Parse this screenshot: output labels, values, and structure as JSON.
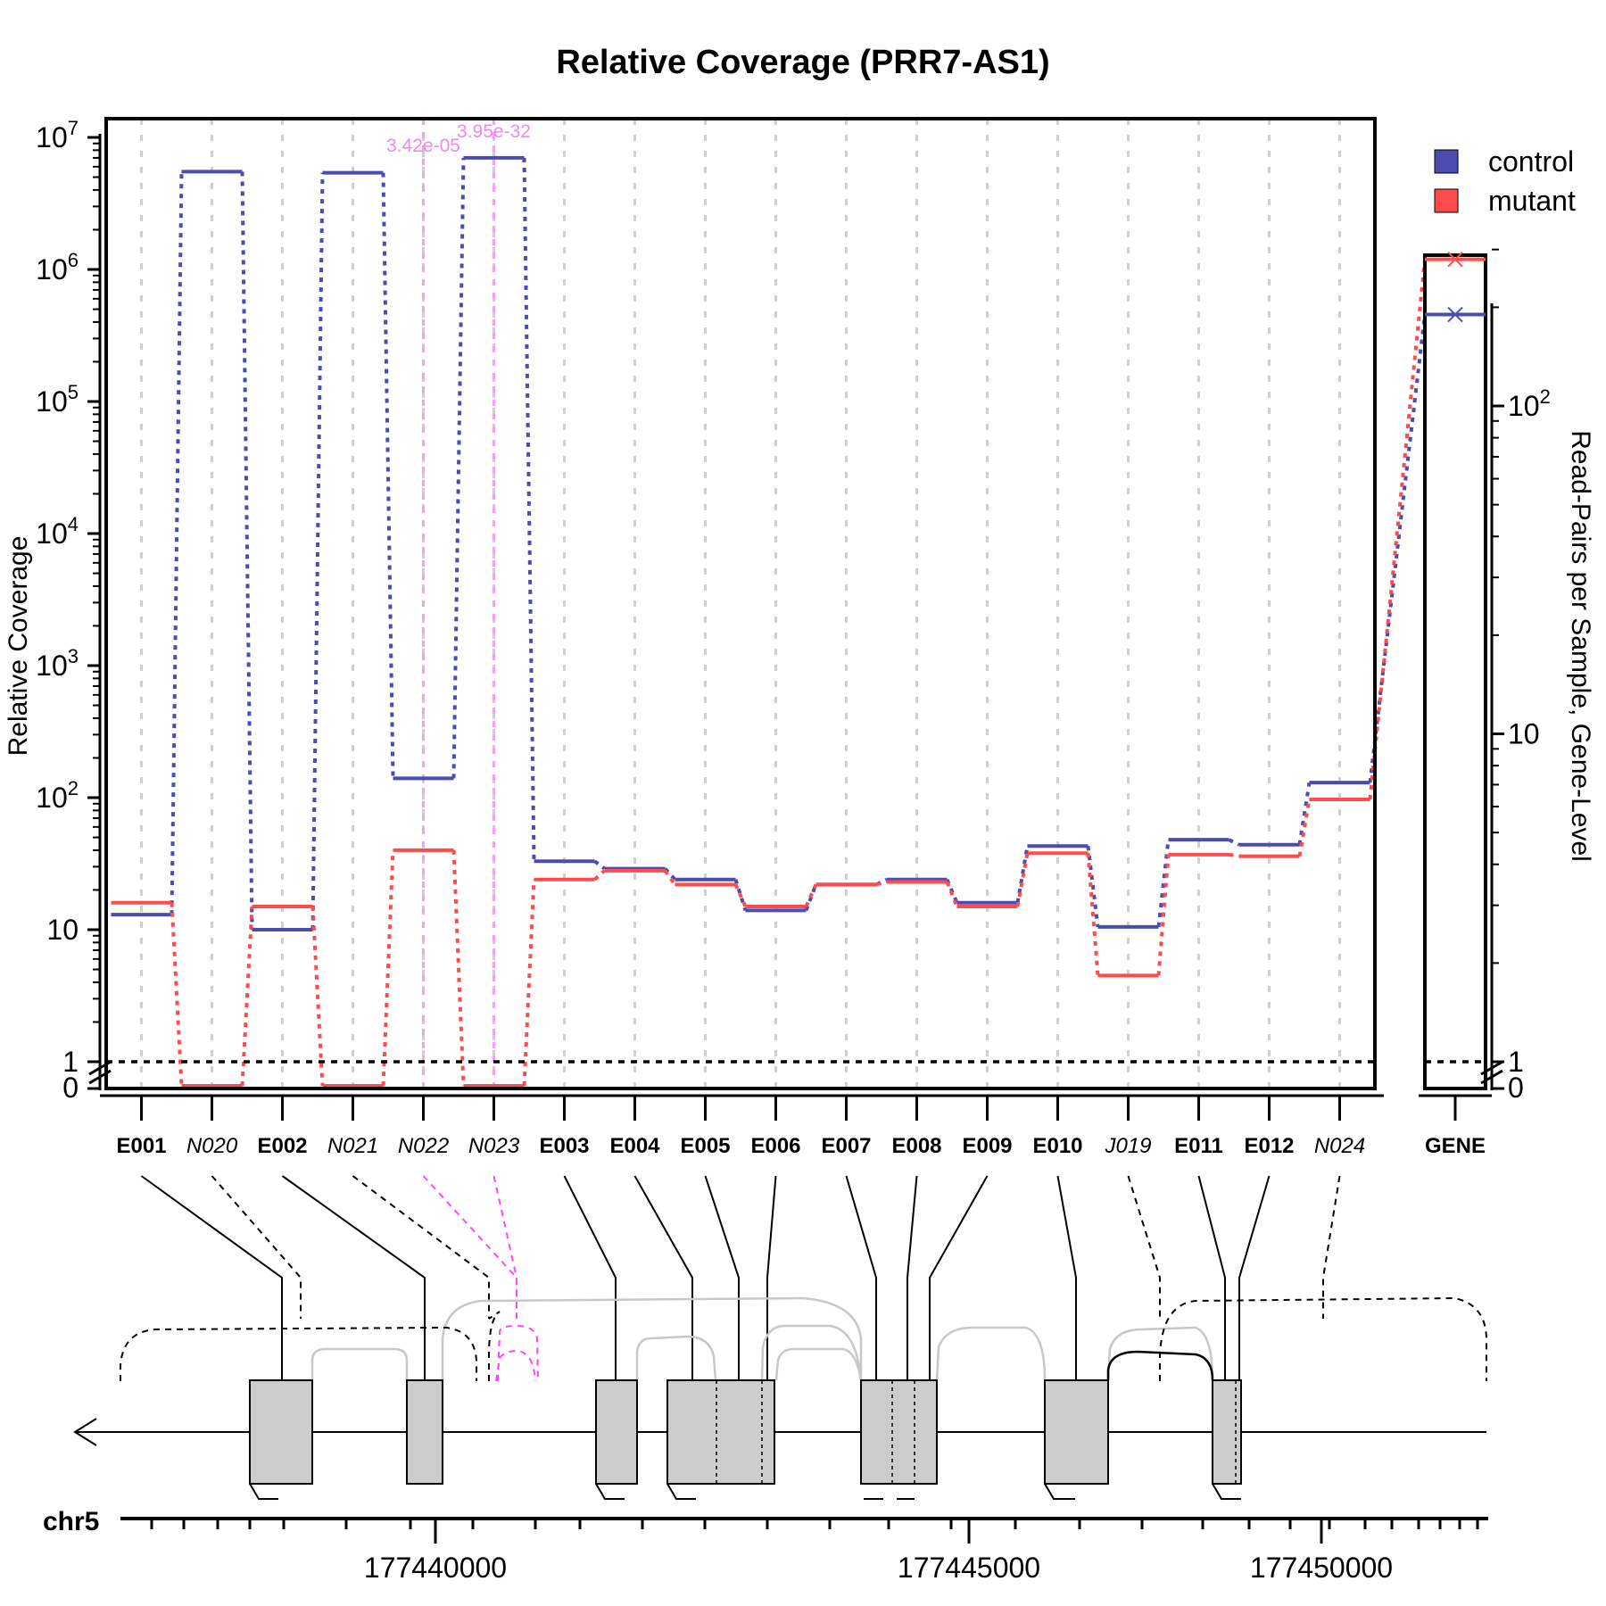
{
  "chart_data": {
    "type": "line",
    "title": "Relative Coverage (PRR7-AS1)",
    "ylabel": "Relative Coverage",
    "ylabel_right": "Read-Pairs per Sample, Gene-Level",
    "y_scale": "log",
    "y_ticks_left": [
      {
        "value": 0,
        "label": "0"
      },
      {
        "value": 1,
        "label": "1"
      },
      {
        "value": 10,
        "label": "10"
      },
      {
        "value": 100,
        "label": "10",
        "exp": "2"
      },
      {
        "value": 1000,
        "label": "10",
        "exp": "3"
      },
      {
        "value": 10000,
        "label": "10",
        "exp": "4"
      },
      {
        "value": 100000,
        "label": "10",
        "exp": "5"
      },
      {
        "value": 1000000,
        "label": "10",
        "exp": "6"
      },
      {
        "value": 10000000,
        "label": "10",
        "exp": "7"
      }
    ],
    "y_ticks_right": [
      {
        "value": 0,
        "label": "0"
      },
      {
        "value": 1,
        "label": "1"
      },
      {
        "value": 10,
        "label": "10"
      },
      {
        "value": 100,
        "label": "10",
        "exp": "2"
      }
    ],
    "reference_line": 1,
    "categories": [
      {
        "label": "E001",
        "italic": false
      },
      {
        "label": "N020",
        "italic": true
      },
      {
        "label": "E002",
        "italic": false
      },
      {
        "label": "N021",
        "italic": true
      },
      {
        "label": "N022",
        "italic": true
      },
      {
        "label": "N023",
        "italic": true
      },
      {
        "label": "E003",
        "italic": false
      },
      {
        "label": "E004",
        "italic": false
      },
      {
        "label": "E005",
        "italic": false
      },
      {
        "label": "E006",
        "italic": false
      },
      {
        "label": "E007",
        "italic": false
      },
      {
        "label": "E008",
        "italic": false
      },
      {
        "label": "E009",
        "italic": false
      },
      {
        "label": "E010",
        "italic": false
      },
      {
        "label": "J019",
        "italic": true
      },
      {
        "label": "E011",
        "italic": false
      },
      {
        "label": "E012",
        "italic": false
      },
      {
        "label": "N024",
        "italic": true
      }
    ],
    "gene_label": "GENE",
    "series": [
      {
        "name": "control",
        "color": "#4b4bb0",
        "values": [
          13,
          5500000,
          10,
          5400000,
          140,
          7000000,
          33,
          29,
          24,
          14,
          22,
          24,
          16,
          43,
          10.5,
          48,
          44,
          130
        ],
        "gene_value": 190
      },
      {
        "name": "mutant",
        "color": "#ff4b4b",
        "values": [
          16,
          0.01,
          15,
          0.01,
          40,
          0.01,
          24,
          28,
          22,
          15,
          22,
          23,
          15,
          38,
          4.5,
          37,
          36,
          97
        ],
        "gene_value": 280
      }
    ],
    "significance": [
      {
        "category": "N022",
        "label": "3.42e-05"
      },
      {
        "category": "N023",
        "label": "3.95e-32"
      }
    ],
    "highlight_color": "#ff44ff",
    "legend": {
      "position": "top-right",
      "items": [
        "control",
        "mutant"
      ]
    },
    "grid": true,
    "genome": {
      "chrom_label": "chr5",
      "tick_labels": [
        "177440000",
        "177445000",
        "177450000"
      ],
      "strand": "minus"
    }
  }
}
